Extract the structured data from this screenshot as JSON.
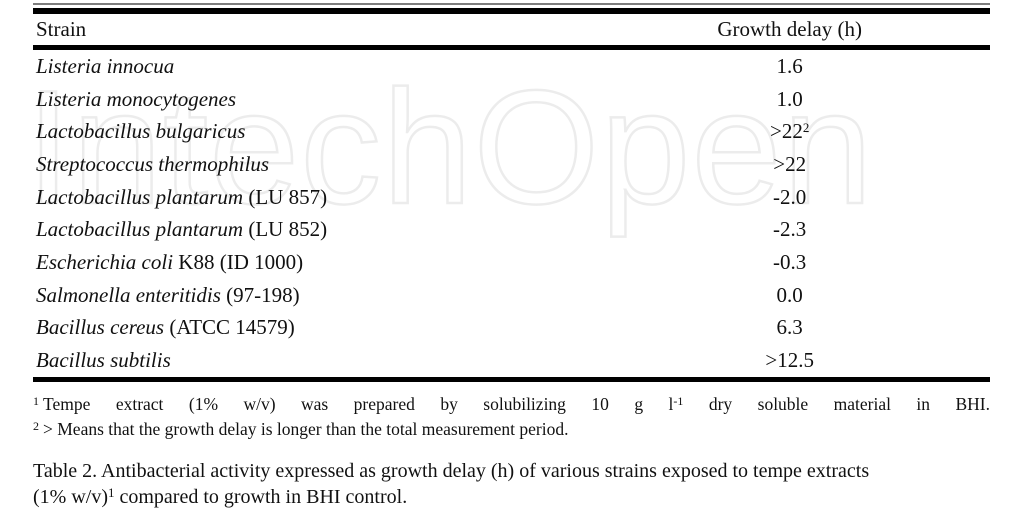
{
  "colors": {
    "text": "#111111",
    "rule": "#000000",
    "rule_thin": "#7d7d7d",
    "watermark_outline": "#ececec",
    "background": "#ffffff"
  },
  "watermark": {
    "text": "IntechOpen"
  },
  "table": {
    "header": {
      "strain": "Strain",
      "growth_delay": "Growth delay (h)"
    },
    "rows": [
      {
        "name_italic": "Listeria innocua",
        "name_roman": "",
        "value": "1.6",
        "value_sup": ""
      },
      {
        "name_italic": "Listeria monocytogenes",
        "name_roman": "",
        "value": "1.0",
        "value_sup": ""
      },
      {
        "name_italic": "Lactobacillus bulgaricus",
        "name_roman": "",
        "value": ">22",
        "value_sup": "2"
      },
      {
        "name_italic": "Streptococcus thermophilus",
        "name_roman": "",
        "value": ">22",
        "value_sup": ""
      },
      {
        "name_italic": "Lactobacillus plantarum",
        "name_roman": " (LU 857)",
        "value": "-2.0",
        "value_sup": ""
      },
      {
        "name_italic": "Lactobacillus plantarum",
        "name_roman": " (LU 852)",
        "value": "-2.3",
        "value_sup": ""
      },
      {
        "name_italic": "Escherichia coli",
        "name_roman": " K88 (ID 1000)",
        "value": "-0.3",
        "value_sup": ""
      },
      {
        "name_italic": "Salmonella enteritidis",
        "name_roman": " (97-198)",
        "value": "0.0",
        "value_sup": ""
      },
      {
        "name_italic": "Bacillus cereus",
        "name_roman": " (ATCC 14579)",
        "value": "6.3",
        "value_sup": ""
      },
      {
        "name_italic": "Bacillus subtilis",
        "name_roman": "",
        "value": ">12.5",
        "value_sup": ""
      }
    ]
  },
  "footnotes": {
    "f1": {
      "marker": "1",
      "part1": "Tempe extract (1% w/v) was prepared by solubilizing 10 g l",
      "sup": "-1",
      "part2": " dry soluble material in BHI."
    },
    "f2": {
      "marker": "2",
      "text": "> Means that the growth delay is longer than the total measurement period."
    }
  },
  "caption": {
    "part1": "Table 2. Antibacterial activity expressed as growth delay (h) of various strains exposed to tempe extracts (1% w/v)",
    "sup": "1",
    "part2": " compared to growth in BHI control."
  }
}
